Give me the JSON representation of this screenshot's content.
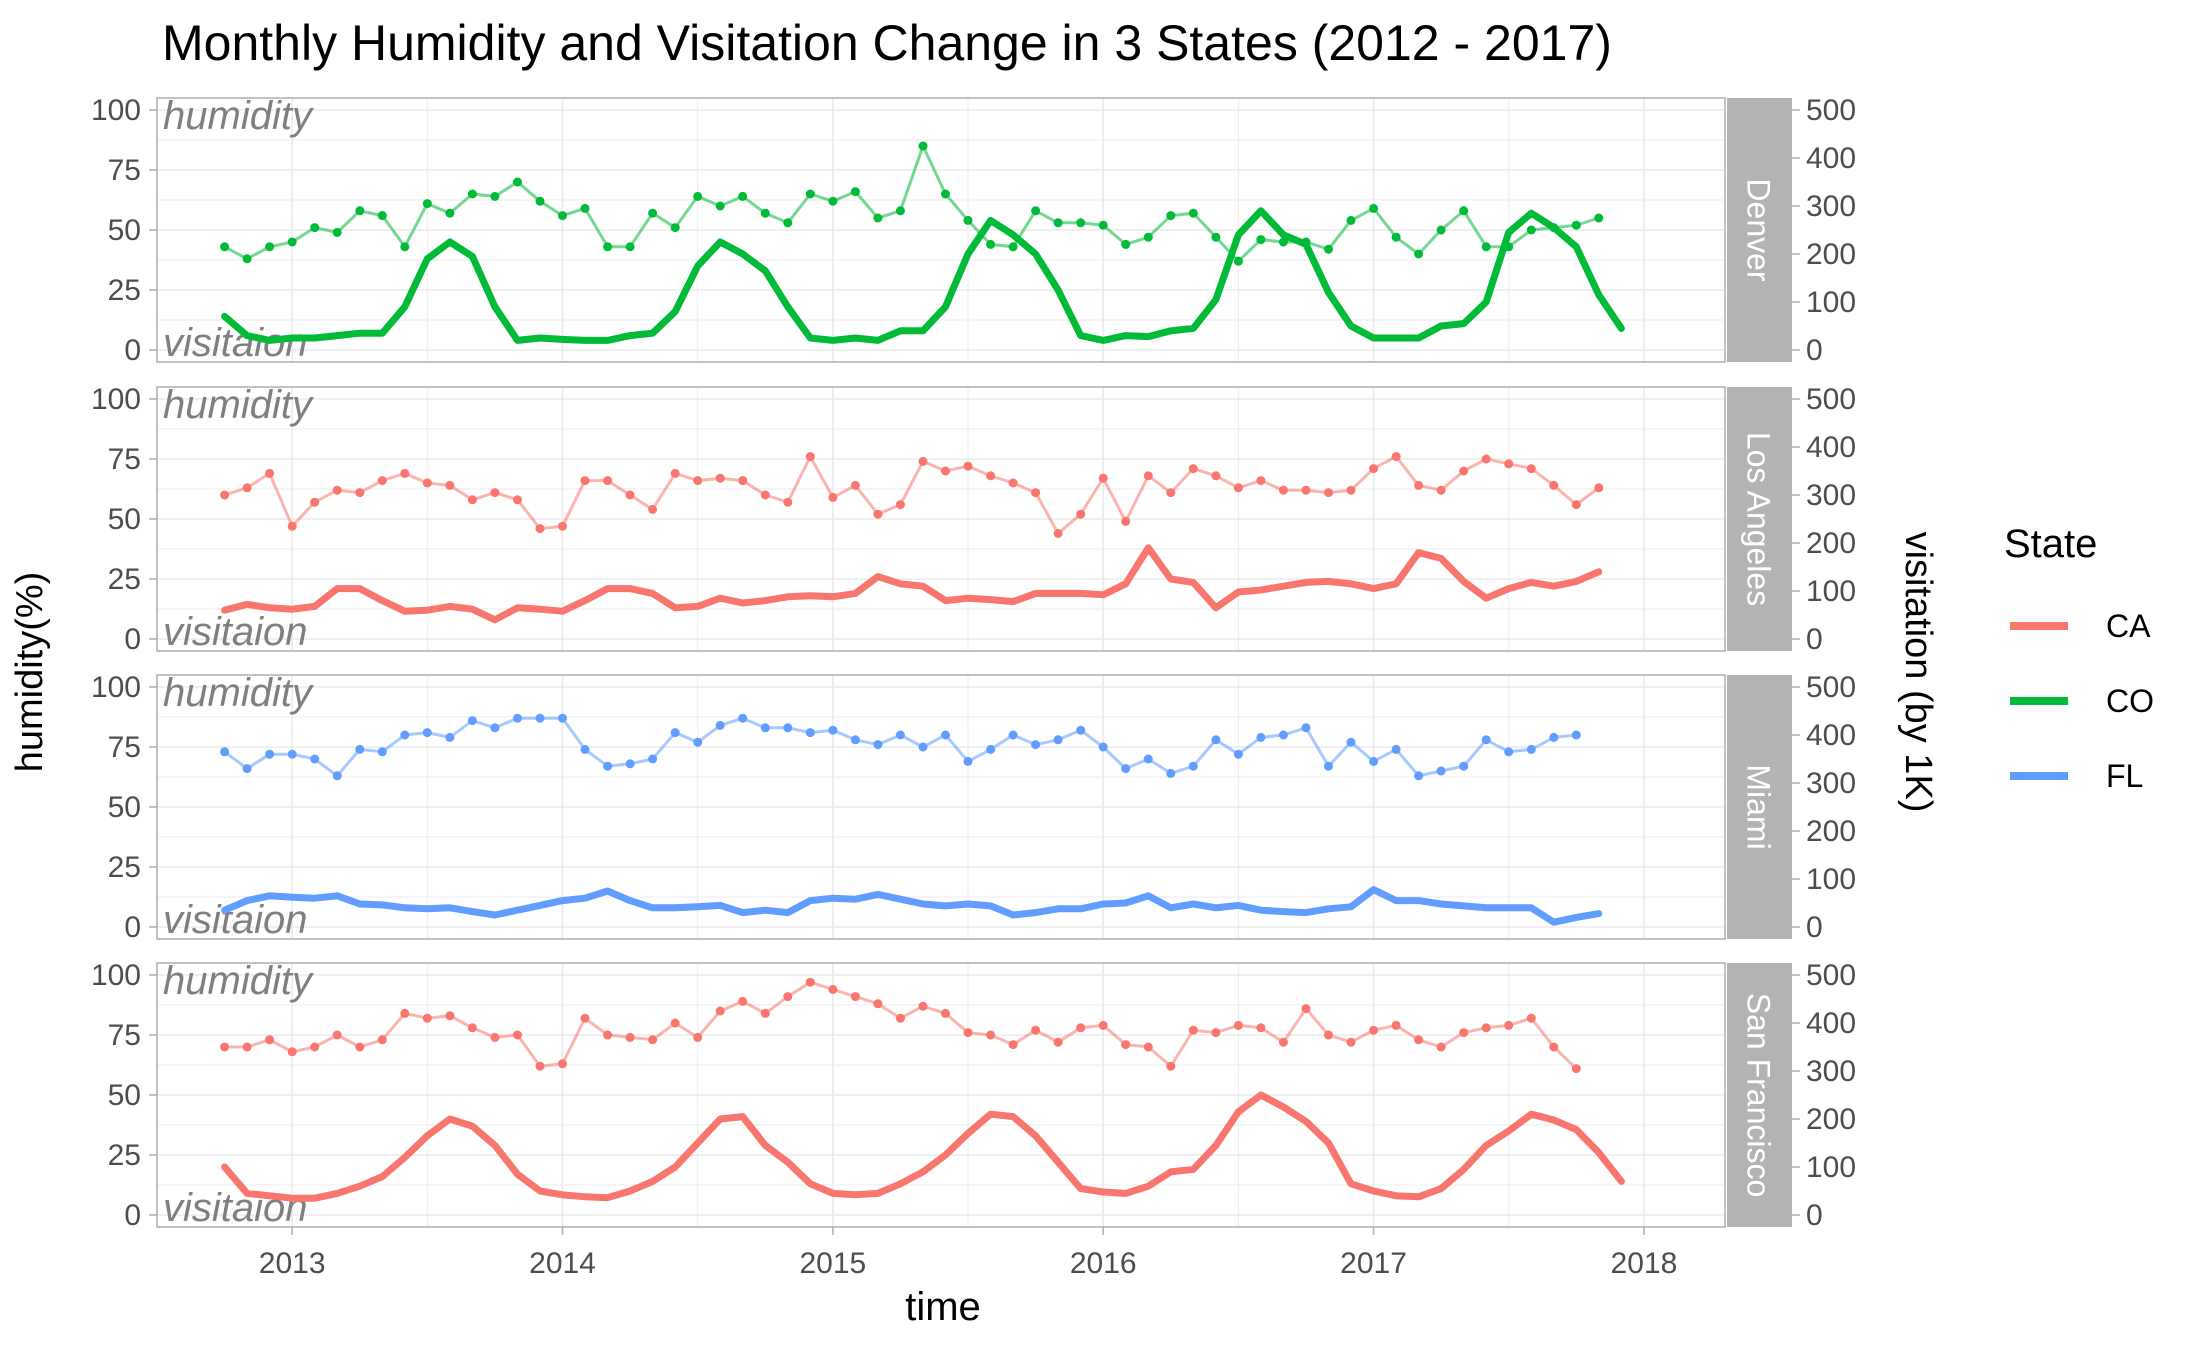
{
  "chart_data": {
    "type": "line",
    "title": "Monthly Humidity and Visitation Change in 3 States (2012 - 2017)",
    "xlabel": "time",
    "ylabel_left": "humidity(%)",
    "ylabel_right": "visitation (by 1K)",
    "x_ticks": [
      "2013",
      "2014",
      "2015",
      "2016",
      "2017",
      "2018"
    ],
    "y_left_ticks": [
      "0",
      "25",
      "50",
      "75",
      "100"
    ],
    "y_right_ticks": [
      "0",
      "100",
      "200",
      "300",
      "400",
      "500"
    ],
    "ylim_left": [
      0,
      100
    ],
    "ylim_right": [
      0,
      500
    ],
    "xlim": [
      2012.5,
      2018.3
    ],
    "grid": true,
    "legend": {
      "title": "State",
      "position": "right",
      "entries": [
        {
          "label": "CA",
          "color": "#F8766D"
        },
        {
          "label": "CO",
          "color": "#00BA38"
        },
        {
          "label": "FL",
          "color": "#619CFF"
        }
      ]
    },
    "annotations": {
      "top": "humidity",
      "bottom": "visitaion"
    },
    "x_start": 2012.75,
    "x_step_months": 1,
    "panels": [
      {
        "name": "Denver",
        "state": "CO",
        "color": "#00BA38",
        "humidity": [
          43,
          38,
          43,
          45,
          51,
          49,
          58,
          56,
          43,
          61,
          57,
          65,
          64,
          70,
          62,
          56,
          59,
          43,
          43,
          57,
          51,
          64,
          60,
          64,
          57,
          53,
          65,
          62,
          66,
          55,
          58,
          85,
          65,
          54,
          44,
          43,
          58,
          53,
          53,
          52,
          44,
          47,
          56,
          57,
          47,
          37,
          46,
          45,
          45,
          42,
          54,
          59,
          47,
          40,
          50,
          58,
          43,
          43,
          50,
          51,
          52,
          55
        ],
        "visitation": [
          70,
          30,
          20,
          25,
          25,
          30,
          35,
          35,
          90,
          190,
          225,
          195,
          90,
          20,
          25,
          22,
          20,
          20,
          30,
          35,
          80,
          175,
          225,
          200,
          165,
          90,
          25,
          20,
          25,
          20,
          40,
          40,
          90,
          200,
          270,
          240,
          200,
          125,
          30,
          20,
          30,
          28,
          40,
          45,
          105,
          240,
          290,
          240,
          220,
          120,
          50,
          25,
          25,
          25,
          50,
          55,
          100,
          245,
          285,
          255,
          215,
          115,
          45
        ]
      },
      {
        "name": "Los Angeles",
        "state": "CA",
        "color": "#F8766D",
        "humidity": [
          60,
          63,
          69,
          47,
          57,
          62,
          61,
          66,
          69,
          65,
          64,
          58,
          61,
          58,
          46,
          47,
          66,
          66,
          60,
          54,
          69,
          66,
          67,
          66,
          60,
          57,
          76,
          59,
          64,
          52,
          56,
          74,
          70,
          72,
          68,
          65,
          61,
          44,
          52,
          67,
          49,
          68,
          61,
          71,
          68,
          63,
          66,
          62,
          62,
          61,
          62,
          71,
          76,
          64,
          62,
          70,
          75,
          73,
          71,
          64,
          56,
          63
        ],
        "visitation": [
          60,
          72,
          65,
          62,
          68,
          105,
          105,
          80,
          58,
          60,
          68,
          62,
          40,
          65,
          62,
          58,
          80,
          105,
          105,
          95,
          65,
          68,
          85,
          75,
          80,
          88,
          90,
          88,
          95,
          130,
          115,
          110,
          80,
          85,
          82,
          78,
          95,
          95,
          95,
          92,
          115,
          190,
          125,
          118,
          65,
          98,
          102,
          110,
          118,
          120,
          115,
          105,
          115,
          180,
          168,
          120,
          85,
          105,
          118,
          110,
          120,
          140
        ]
      },
      {
        "name": "Miami",
        "state": "FL",
        "color": "#619CFF",
        "humidity": [
          73,
          66,
          72,
          72,
          70,
          63,
          74,
          73,
          80,
          81,
          79,
          86,
          83,
          87,
          87,
          87,
          74,
          67,
          68,
          70,
          81,
          77,
          84,
          87,
          83,
          83,
          81,
          82,
          78,
          76,
          80,
          75,
          80,
          69,
          74,
          80,
          76,
          78,
          82,
          75,
          66,
          70,
          64,
          67,
          78,
          72,
          79,
          80,
          83,
          67,
          77,
          69,
          74,
          63,
          65,
          67,
          78,
          73,
          74,
          79,
          80
        ],
        "visitation": [
          35,
          55,
          65,
          62,
          60,
          65,
          48,
          46,
          40,
          38,
          40,
          32,
          25,
          35,
          45,
          55,
          60,
          75,
          55,
          40,
          40,
          42,
          45,
          30,
          35,
          30,
          55,
          60,
          58,
          68,
          58,
          48,
          44,
          48,
          44,
          25,
          30,
          38,
          38,
          48,
          50,
          65,
          40,
          48,
          40,
          45,
          35,
          32,
          30,
          38,
          42,
          78,
          55,
          55,
          48,
          44,
          40,
          40,
          40,
          10,
          20,
          28
        ]
      },
      {
        "name": "San Francisco",
        "state": "CA",
        "color": "#F8766D",
        "humidity": [
          70,
          70,
          73,
          68,
          70,
          75,
          70,
          73,
          84,
          82,
          83,
          78,
          74,
          75,
          62,
          63,
          82,
          75,
          74,
          73,
          80,
          74,
          85,
          89,
          84,
          91,
          97,
          94,
          91,
          88,
          82,
          87,
          84,
          76,
          75,
          71,
          77,
          72,
          78,
          79,
          71,
          70,
          62,
          77,
          76,
          79,
          78,
          72,
          86,
          75,
          72,
          77,
          79,
          73,
          70,
          76,
          78,
          79,
          82,
          70,
          61
        ],
        "visitation": [
          100,
          45,
          40,
          35,
          35,
          45,
          60,
          80,
          120,
          165,
          200,
          185,
          145,
          85,
          50,
          42,
          38,
          36,
          50,
          70,
          100,
          150,
          200,
          205,
          145,
          110,
          65,
          45,
          42,
          45,
          65,
          90,
          125,
          170,
          210,
          205,
          165,
          110,
          55,
          48,
          45,
          60,
          90,
          95,
          145,
          215,
          250,
          225,
          195,
          150,
          65,
          50,
          40,
          38,
          55,
          95,
          145,
          175,
          210,
          198,
          178,
          130,
          70
        ]
      }
    ]
  }
}
